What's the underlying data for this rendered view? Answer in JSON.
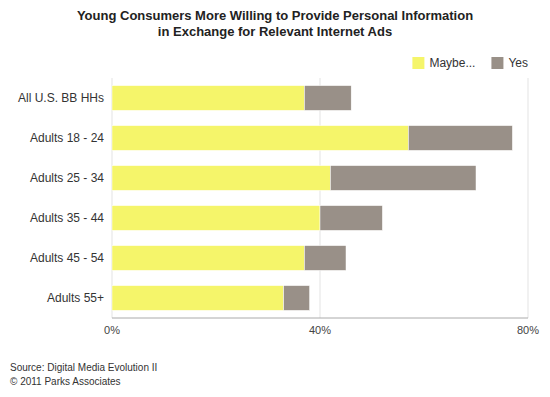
{
  "chart_data": {
    "type": "bar",
    "orientation": "horizontal",
    "stacked": true,
    "title": "Young Consumers More Willing to Provide Personal Information\nin Exchange for Relevant Internet Ads",
    "categories": [
      "All U.S. BB HHs",
      "Adults 18 - 24",
      "Adults 25 - 34",
      "Adults 35 - 44",
      "Adults 45 - 54",
      "Adults 55+"
    ],
    "series": [
      {
        "name": "Maybe...",
        "color": "#F5F56A",
        "values": [
          37,
          57,
          42,
          40,
          37,
          33
        ]
      },
      {
        "name": "Yes",
        "color": "#999088",
        "values": [
          9,
          20,
          28,
          12,
          8,
          5
        ]
      }
    ],
    "xlim": [
      0,
      80
    ],
    "xticks": [
      {
        "value": 0,
        "label": "0%"
      },
      {
        "value": 40,
        "label": "40%"
      },
      {
        "value": 80,
        "label": "80%"
      }
    ],
    "grid": true,
    "legend": "upper right",
    "annotations": [
      "Source: Digital Media Evolution II",
      "© 2011 Parks Associates"
    ]
  }
}
